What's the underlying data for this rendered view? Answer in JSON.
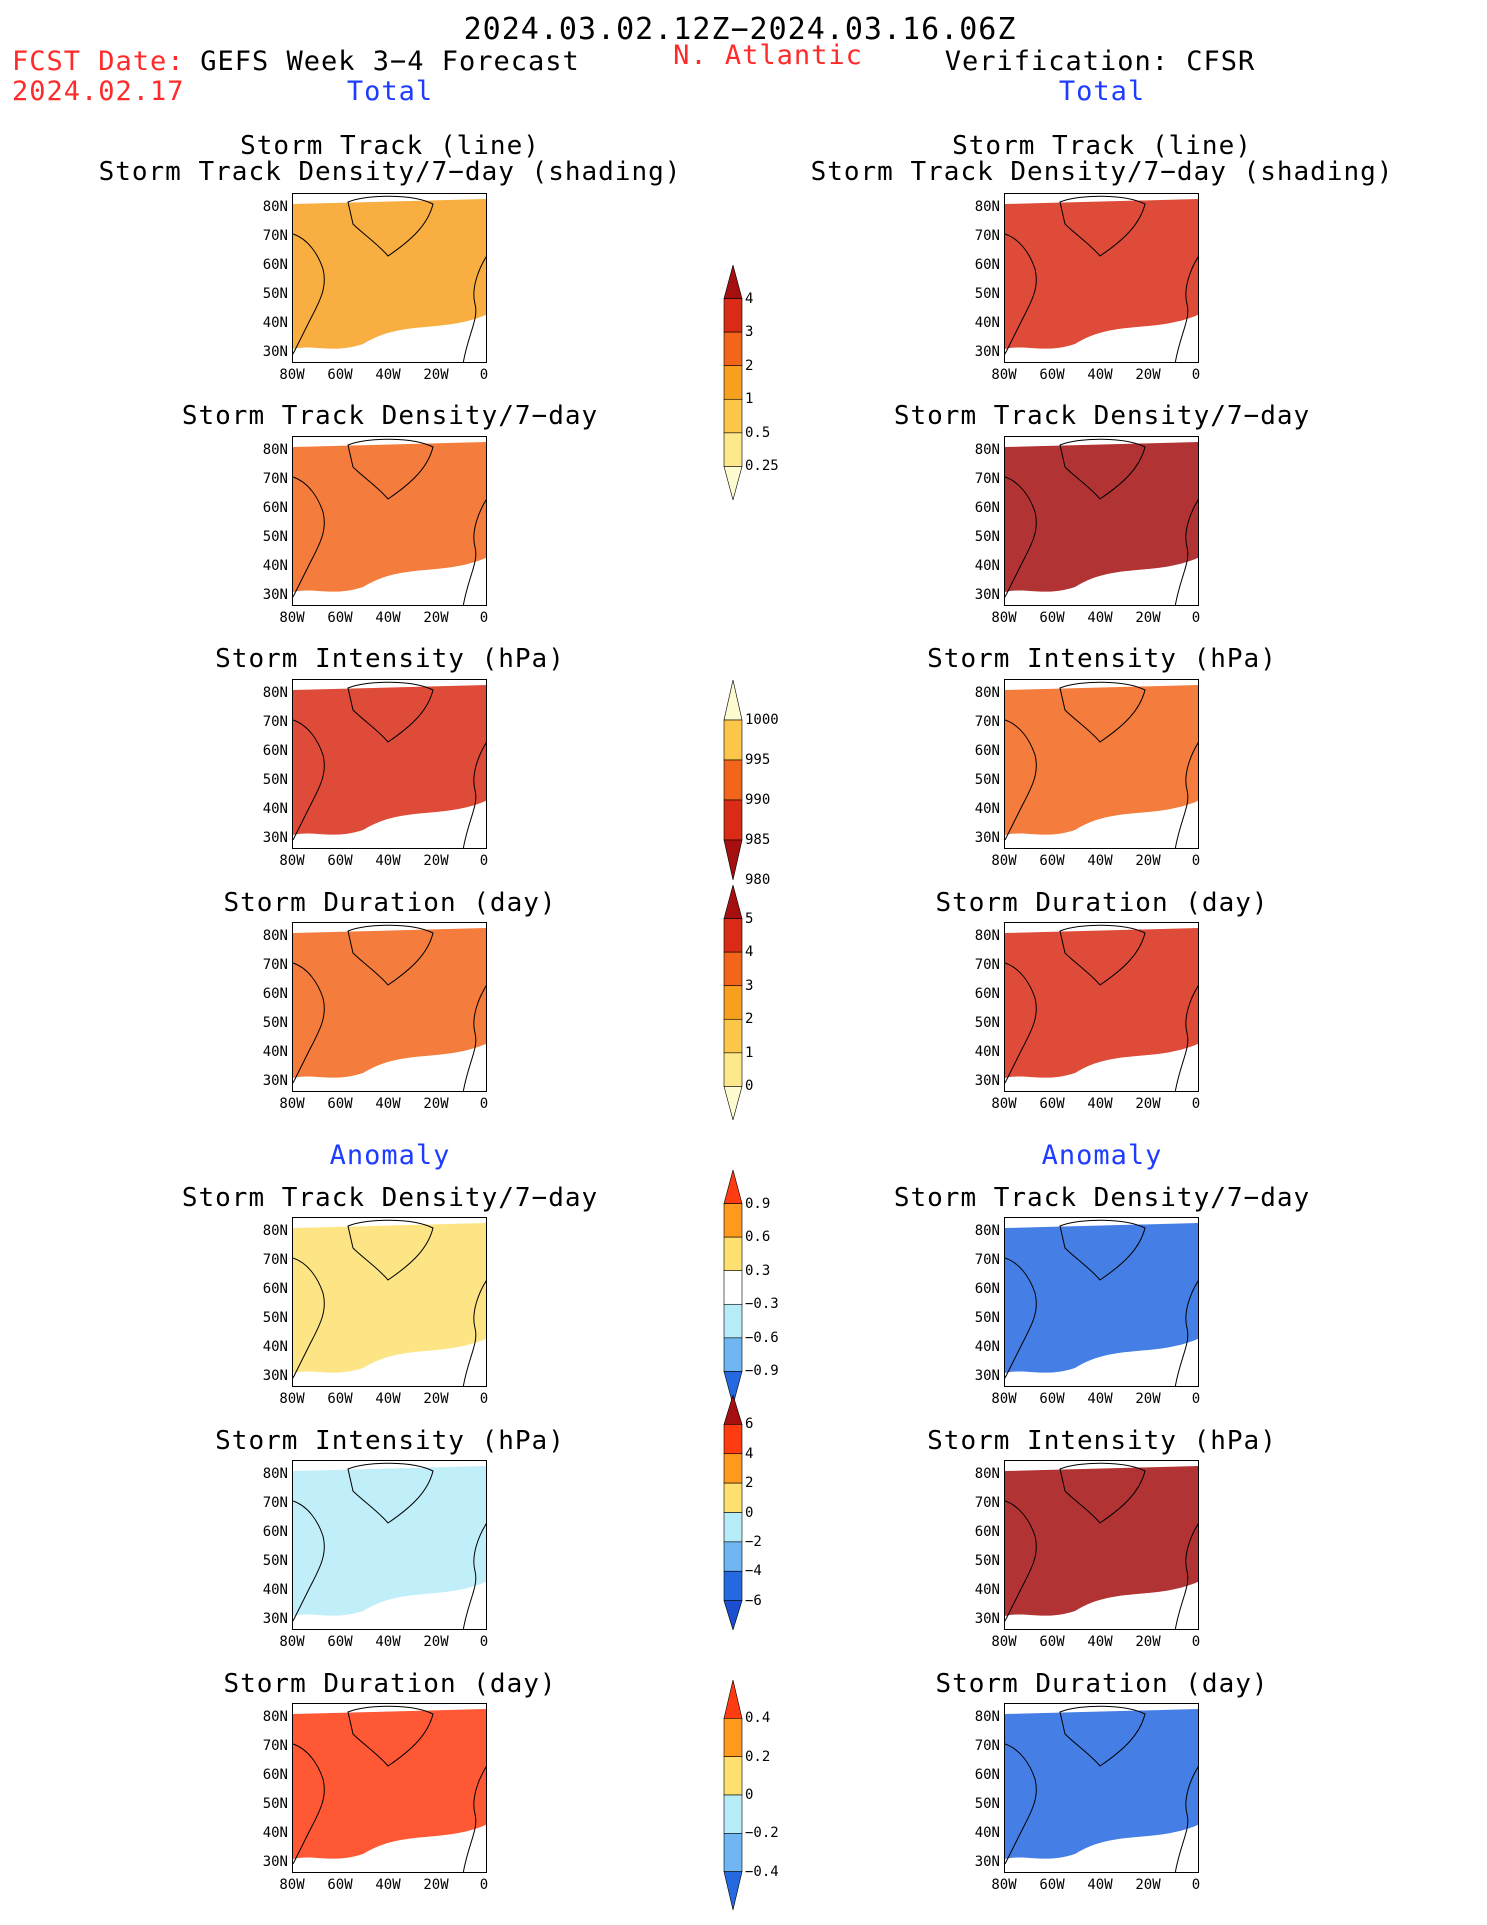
{
  "header": {
    "date_range": "2024.03.02.12Z−2024.03.16.06Z",
    "fcst_label": "FCST Date:",
    "fcst_date": "2024.02.17",
    "model_title": "GEFS Week 3−4 Forecast",
    "region": "N. Atlantic",
    "verification": "Verification: CFSR",
    "left_section_total": "Total",
    "right_section_total": "Total",
    "left_section_anomaly": "Anomaly",
    "right_section_anomaly": "Anomaly"
  },
  "panel_titles": {
    "track_line": "Storm Track (line)",
    "track_shading": "Storm Track Density/7−day (shading)",
    "density": "Storm Track Density/7−day",
    "intensity": "Storm Intensity (hPa)",
    "duration": "Storm Duration (day)"
  },
  "axes": {
    "lat_ticks": [
      "80N",
      "70N",
      "60N",
      "50N",
      "40N",
      "30N"
    ],
    "lon_ticks": [
      "80W",
      "60W",
      "40W",
      "20W",
      "0"
    ]
  },
  "colorbars": {
    "density_total": {
      "labels": [
        "4",
        "3",
        "2",
        "1",
        "0.5",
        "0.25"
      ],
      "colors": [
        "#a50f0f",
        "#d92b16",
        "#f2651a",
        "#f7a01e",
        "#fbc64a",
        "#fde88c",
        "#fffbd0"
      ]
    },
    "intensity_total": {
      "labels": [
        "1000",
        "995",
        "990",
        "985",
        "980"
      ],
      "colors": [
        "#fffbd0",
        "#fbc64a",
        "#f2651a",
        "#d92b16",
        "#a50f0f"
      ]
    },
    "duration_total": {
      "labels": [
        "5",
        "4",
        "3",
        "2",
        "1",
        "0"
      ],
      "colors": [
        "#a50f0f",
        "#d92b16",
        "#f2651a",
        "#f7a01e",
        "#fbc64a",
        "#fde88c",
        "#fffbd0"
      ]
    },
    "density_anom": {
      "labels": [
        "0.9",
        "0.6",
        "0.3",
        "−0.3",
        "−0.6",
        "−0.9"
      ],
      "colors": [
        "#ff3b12",
        "#ff9a1c",
        "#fde070",
        "#ffffff",
        "#b6ecf8",
        "#6fb6f2",
        "#2569e0"
      ]
    },
    "intensity_anom": {
      "labels": [
        "6",
        "4",
        "2",
        "0",
        "−2",
        "−4",
        "−6"
      ],
      "colors": [
        "#a50f0f",
        "#ff3b12",
        "#ff9a1c",
        "#fde070",
        "#b6ecf8",
        "#6fb6f2",
        "#2569e0",
        "#1c4fd0"
      ]
    },
    "duration_anom": {
      "labels": [
        "0.4",
        "0.2",
        "0",
        "−0.2",
        "−0.4"
      ],
      "colors": [
        "#ff3b12",
        "#ff9a1c",
        "#fde070",
        "#b6ecf8",
        "#6fb6f2",
        "#2569e0"
      ]
    }
  },
  "map_fills": {
    "gefs_track": "#f7a01e",
    "cfsr_track": "#d92b16",
    "gefs_density": "#f2651a",
    "cfsr_density": "#a50f0f",
    "gefs_intensity": "#d92b16",
    "cfsr_intensity": "#f2651a",
    "gefs_duration": "#f2651a",
    "cfsr_duration": "#d92b16",
    "gefs_density_anom": "#fde070",
    "cfsr_density_anom": "#2569e0",
    "gefs_intensity_anom": "#b6ecf8",
    "cfsr_intensity_anom": "#a50f0f",
    "gefs_duration_anom": "#ff3b12",
    "cfsr_duration_anom": "#2569e0"
  }
}
